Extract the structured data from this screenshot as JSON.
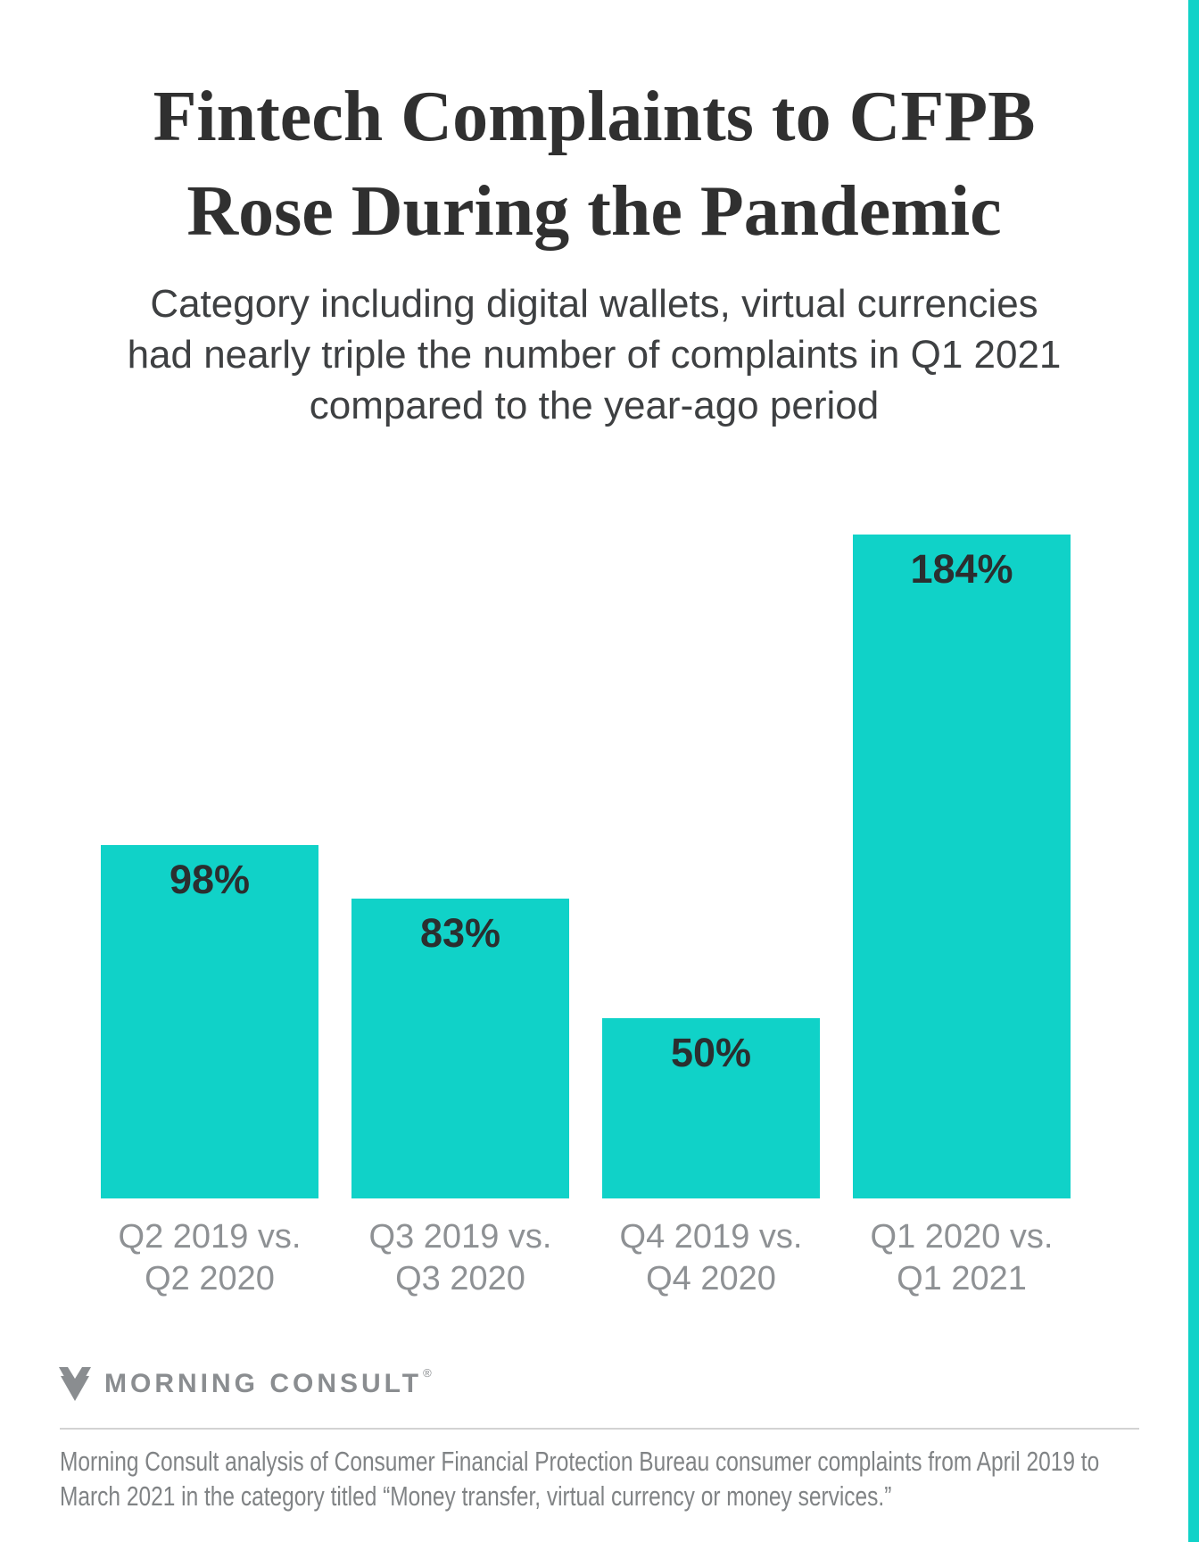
{
  "page": {
    "title_lines": [
      "Fintech Complaints to CFPB",
      "Rose During the Pandemic"
    ],
    "subtitle_lines": [
      "Category including digital wallets, virtual currencies",
      "had nearly triple the number of complaints in Q1 2021",
      "compared to the year-ago period"
    ]
  },
  "chart_data": {
    "type": "bar",
    "title": "Fintech Complaints to CFPB Rose During the Pandemic",
    "subtitle": "Category including digital wallets, virtual currencies had nearly triple the number of complaints in Q1 2021 compared to the year-ago period",
    "categories": [
      "Q2 2019 vs. Q2 2020",
      "Q3 2019 vs. Q3 2020",
      "Q4 2019 vs. Q4 2020",
      "Q1 2020 vs. Q1 2021"
    ],
    "category_lines": [
      [
        "Q2 2019 vs.",
        "Q2 2020"
      ],
      [
        "Q3 2019 vs.",
        "Q3 2020"
      ],
      [
        "Q4 2019 vs.",
        "Q4 2020"
      ],
      [
        "Q1 2020 vs.",
        "Q1 2021"
      ]
    ],
    "values": [
      98,
      83,
      50,
      184
    ],
    "value_labels": [
      "98%",
      "83%",
      "50%",
      "184%"
    ],
    "unit": "percent year-over-year change",
    "bar_color": "#10D2C8",
    "ylim": [
      0,
      184
    ],
    "gridlines": false,
    "axis_lines": false,
    "legend_position": "none",
    "value_label_position": "inside-top"
  },
  "branding": {
    "logo_text": "MORNING CONSULT",
    "registered_mark": "®"
  },
  "footer": {
    "line1": "Morning Consult analysis of Consumer Financial Protection Bureau consumer complaints from April 2019 to",
    "line2": "March 2021 in the category titled “Money transfer, virtual currency or money services.”"
  },
  "colors": {
    "accent_teal": "#10D2C8",
    "title_text": "#303030",
    "subtitle_text": "#3E4042",
    "value_label_text": "#2B2E2F",
    "axis_label_text": "#8E9194",
    "logo_gray": "#8A8D90",
    "footer_text": "#808385",
    "divider": "#D3D3D3",
    "background": "#FFFFFF"
  }
}
